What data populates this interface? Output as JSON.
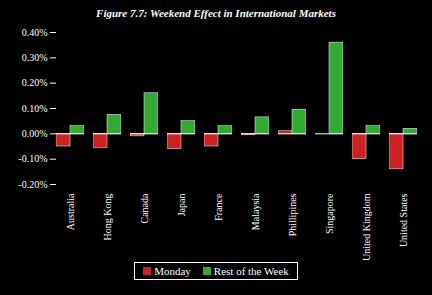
{
  "chart_data": {
    "type": "bar",
    "title": "Figure 7.7: Weekend Effect in International Markets",
    "categories": [
      "Australia",
      "Hong Kong",
      "Canada",
      "Japan",
      "France",
      "Malaysia",
      "Phillipines",
      "Singapore",
      "United Kingdom",
      "United States"
    ],
    "series": [
      {
        "name": "Monday",
        "color": "#cc2222",
        "values": [
          -0.05,
          -0.055,
          -0.01,
          -0.06,
          -0.05,
          -0.005,
          0.01,
          0.0,
          -0.1,
          -0.14
        ]
      },
      {
        "name": "Rest of the Week",
        "color": "#33aa33",
        "values": [
          0.03,
          0.075,
          0.16,
          0.05,
          0.03,
          0.065,
          0.095,
          0.36,
          0.03,
          0.02
        ]
      }
    ],
    "ylim": [
      -0.2,
      0.4
    ],
    "yticks": [
      {
        "value": -0.2,
        "label": "-0.20%"
      },
      {
        "value": -0.1,
        "label": "-0.10%"
      },
      {
        "value": 0,
        "label": "0.00%"
      },
      {
        "value": 0.1,
        "label": "0.10%"
      },
      {
        "value": 0.2,
        "label": "0.20%"
      },
      {
        "value": 0.3,
        "label": "0.30%"
      },
      {
        "value": 0.4,
        "label": "0.40%"
      }
    ],
    "grid": false,
    "legend": "bottom"
  }
}
